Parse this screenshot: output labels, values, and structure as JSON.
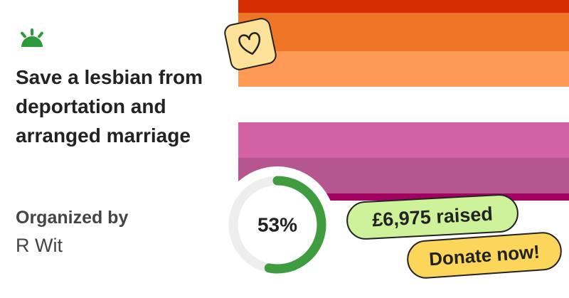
{
  "title": "Save a lesbian from deportation and arranged marriage",
  "organizer": {
    "label": "Organized by",
    "name": "R Wit"
  },
  "progress": {
    "value": 53,
    "label": "53%"
  },
  "raised": "£6,975 raised",
  "button": "Donate now!"
}
